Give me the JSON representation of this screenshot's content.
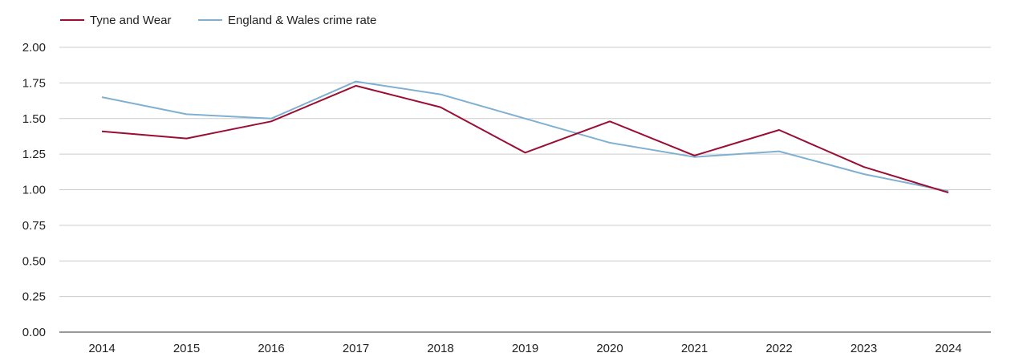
{
  "chart_data": {
    "type": "line",
    "title": "",
    "xlabel": "",
    "ylabel": "",
    "x": [
      "2014",
      "2015",
      "2016",
      "2017",
      "2018",
      "2019",
      "2020",
      "2021",
      "2022",
      "2023",
      "2024"
    ],
    "ylim": [
      0,
      2
    ],
    "yticks": [
      "0.00",
      "0.25",
      "0.50",
      "0.75",
      "1.00",
      "1.25",
      "1.50",
      "1.75",
      "2.00"
    ],
    "grid": true,
    "legend_position": "top-left",
    "series": [
      {
        "name": "Tyne and Wear",
        "color": "#9b0d33",
        "values": [
          1.41,
          1.36,
          1.48,
          1.73,
          1.58,
          1.26,
          1.48,
          1.24,
          1.42,
          1.16,
          0.98
        ]
      },
      {
        "name": "England & Wales crime rate",
        "color": "#7fb0d2",
        "values": [
          1.65,
          1.53,
          1.5,
          1.76,
          1.67,
          1.5,
          1.33,
          1.23,
          1.27,
          1.11,
          0.99
        ]
      }
    ]
  }
}
